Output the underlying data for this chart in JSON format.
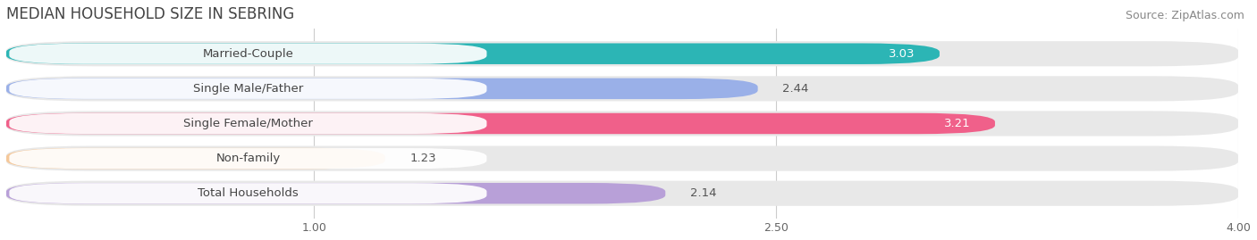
{
  "title": "MEDIAN HOUSEHOLD SIZE IN SEBRING",
  "source": "Source: ZipAtlas.com",
  "categories": [
    "Married-Couple",
    "Single Male/Father",
    "Single Female/Mother",
    "Non-family",
    "Total Households"
  ],
  "values": [
    3.03,
    2.44,
    3.21,
    1.23,
    2.14
  ],
  "bar_colors": [
    "#2cb5b5",
    "#9ab0e8",
    "#f0608a",
    "#f5c89a",
    "#b8a0d8"
  ],
  "track_color": "#e8e8e8",
  "xlim": [
    0,
    4.0
  ],
  "xticks": [
    1.0,
    2.5,
    4.0
  ],
  "label_fontsize": 9.5,
  "value_fontsize": 9.5,
  "title_fontsize": 12,
  "source_fontsize": 9,
  "background_color": "#ffffff",
  "label_pill_color": "#ffffff",
  "grid_color": "#cccccc",
  "value_inside_color": "#ffffff",
  "value_outside_color": "#555555",
  "inside_threshold": 2.8
}
